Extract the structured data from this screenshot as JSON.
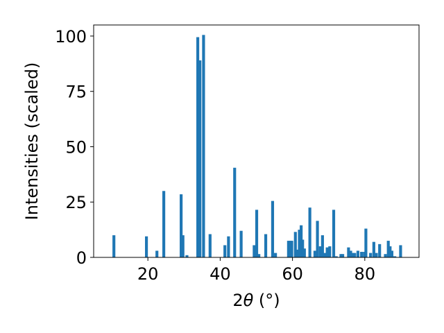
{
  "chart_data": {
    "type": "bar",
    "xlabel_main": "2",
    "xlabel_theta": "θ",
    "xlabel_unit": " (°)",
    "ylabel": "Intensities (scaled)",
    "xlim": [
      5,
      95
    ],
    "ylim": [
      0,
      105
    ],
    "xticks": [
      20,
      40,
      60,
      80
    ],
    "yticks": [
      0,
      25,
      50,
      75,
      100
    ],
    "grid": false,
    "bar_color": "#1f77b4",
    "bar_width": 0.8,
    "x": [
      10.6,
      19.6,
      22.5,
      24.4,
      29.2,
      29.7,
      30.8,
      33.8,
      34.4,
      35.4,
      37.2,
      41.3,
      42.3,
      44.0,
      45.8,
      49.4,
      50.1,
      50.7,
      52.6,
      54.5,
      55.3,
      58.9,
      59.3,
      59.8,
      60.8,
      61.4,
      61.9,
      62.4,
      62.8,
      63.3,
      64.8,
      66.2,
      66.9,
      67.7,
      68.3,
      68.9,
      69.6,
      70.3,
      71.4,
      72.1,
      73.4,
      73.9,
      75.5,
      76.1,
      76.6,
      77.2,
      78.1,
      79.1,
      79.9,
      80.3,
      81.6,
      82.5,
      83.2,
      84.1,
      85.7,
      86.5,
      87.0,
      87.5,
      88.3,
      89.9
    ],
    "values": [
      10,
      9.5,
      3,
      30,
      28.5,
      10,
      1,
      99.5,
      89,
      100.5,
      10.5,
      5.5,
      9.5,
      40.5,
      12,
      5.5,
      21.5,
      1.5,
      10.5,
      25.5,
      2,
      7.5,
      7.5,
      7.5,
      11.5,
      3.5,
      12.5,
      14.5,
      8,
      4,
      22.5,
      3,
      16.5,
      5,
      10,
      2,
      4.5,
      5,
      21.5,
      0.5,
      1.5,
      1.5,
      4.5,
      3,
      2,
      2,
      3,
      2.5,
      2.5,
      13,
      2,
      7,
      2,
      6,
      1.5,
      7.5,
      5,
      3,
      0.5,
      5.5
    ]
  }
}
